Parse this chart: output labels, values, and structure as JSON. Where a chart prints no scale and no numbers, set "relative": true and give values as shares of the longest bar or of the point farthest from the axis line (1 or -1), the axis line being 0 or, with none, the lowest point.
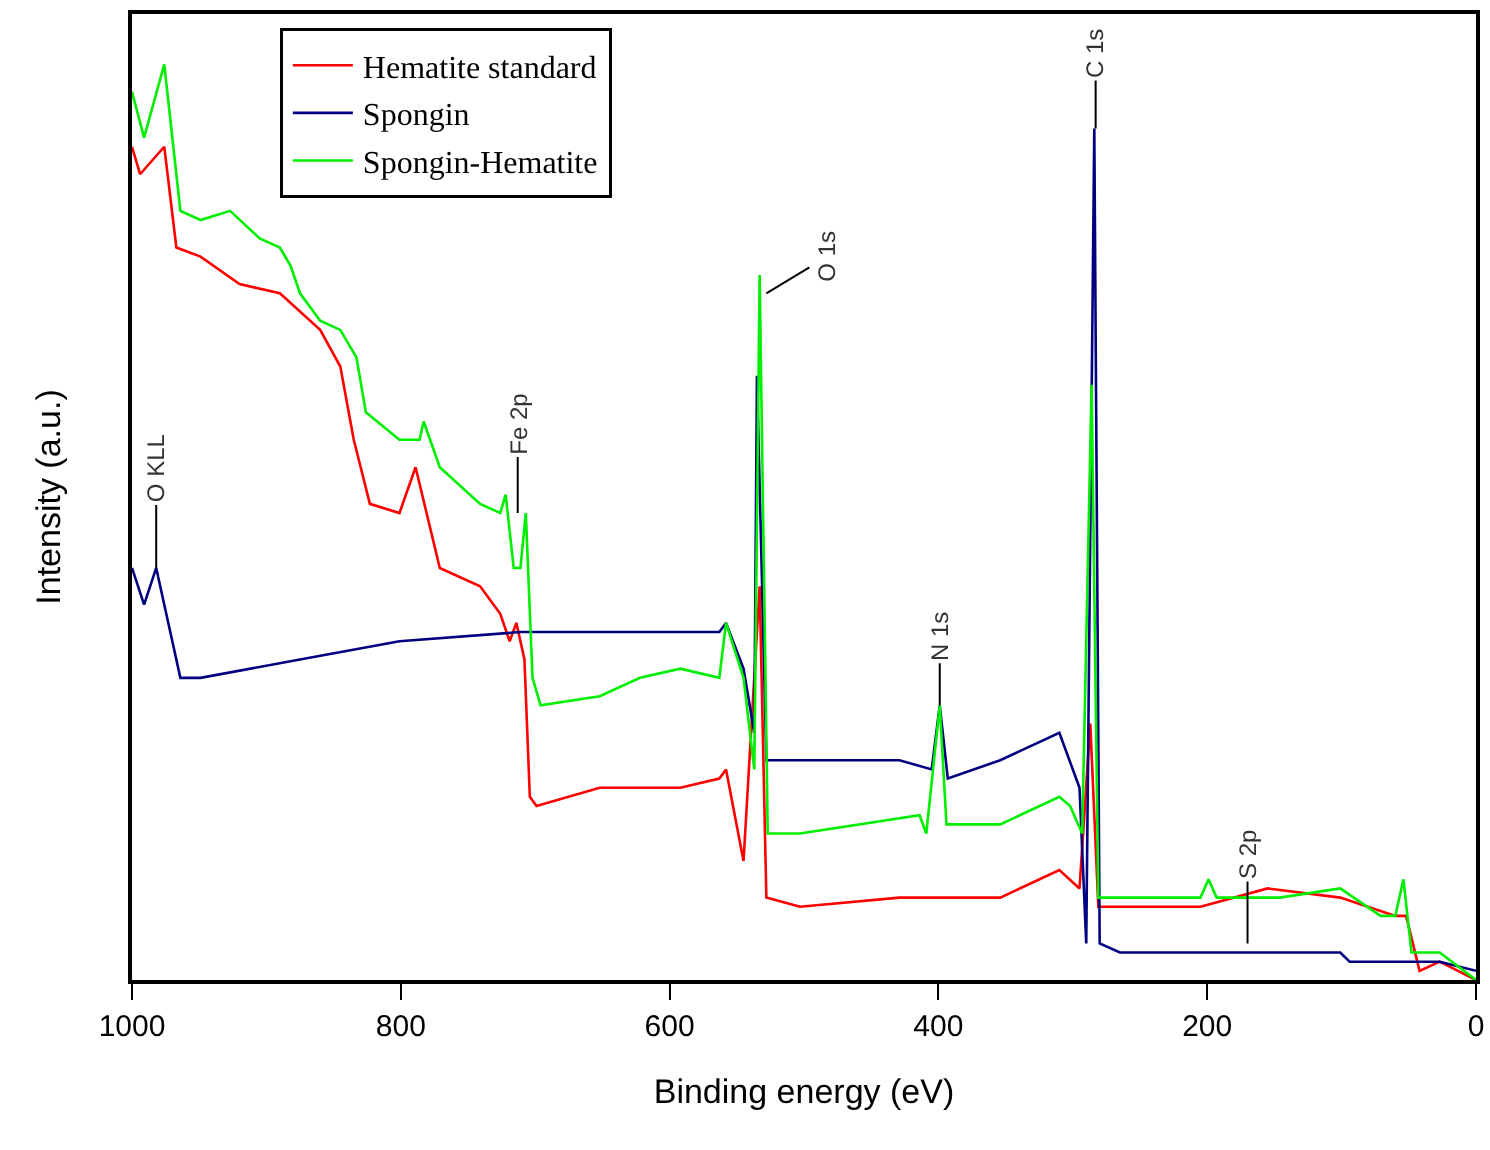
{
  "chart_data": {
    "type": "line",
    "relative": true,
    "xlabel": "Binding energy (eV)",
    "ylabel": "Intensity (a.u.)",
    "xlim": [
      1000,
      0
    ],
    "xticks": [
      1000,
      800,
      600,
      400,
      200,
      0
    ],
    "legend": "top left",
    "grid": false,
    "marker": "none",
    "line_style": "solid",
    "series": [
      {
        "name": "Hematite standard",
        "color": "#ff0000",
        "x": [
          1000,
          994,
          976,
          967,
          949,
          920,
          890,
          860,
          845,
          835,
          823,
          801,
          789,
          771,
          741,
          726,
          719,
          714,
          708,
          704,
          699,
          652,
          592,
          563,
          558,
          545,
          533,
          528,
          503,
          429,
          354,
          310,
          295,
          287,
          281,
          265,
          205,
          155,
          101,
          60,
          52,
          42,
          27,
          0
        ],
        "values": [
          0.91,
          0.88,
          0.91,
          0.8,
          0.79,
          0.76,
          0.75,
          0.71,
          0.67,
          0.59,
          0.52,
          0.51,
          0.56,
          0.45,
          0.43,
          0.4,
          0.37,
          0.39,
          0.35,
          0.2,
          0.19,
          0.21,
          0.21,
          0.22,
          0.23,
          0.13,
          0.43,
          0.09,
          0.08,
          0.09,
          0.09,
          0.12,
          0.1,
          0.28,
          0.08,
          0.08,
          0.08,
          0.1,
          0.09,
          0.07,
          0.07,
          0.01,
          0.02,
          0
        ]
      },
      {
        "name": "Spongin",
        "color": "#000080",
        "x": [
          1000,
          991,
          982,
          964,
          949,
          875,
          801,
          711,
          652,
          563,
          558,
          545,
          537,
          535,
          528,
          503,
          429,
          405,
          399,
          393,
          354,
          310,
          295,
          290,
          284,
          280,
          265,
          205,
          152,
          146,
          101,
          94,
          27,
          0
        ],
        "values": [
          0.45,
          0.41,
          0.45,
          0.33,
          0.33,
          0.35,
          0.37,
          0.38,
          0.38,
          0.38,
          0.39,
          0.34,
          0.27,
          0.66,
          0.24,
          0.24,
          0.24,
          0.23,
          0.3,
          0.22,
          0.24,
          0.27,
          0.21,
          0.04,
          0.93,
          0.04,
          0.03,
          0.03,
          0.03,
          0.03,
          0.03,
          0.02,
          0.02,
          0.01
        ]
      },
      {
        "name": "Spongin-Hematite",
        "color": "#00ee00",
        "x": [
          1000,
          991,
          976,
          964,
          949,
          927,
          905,
          890,
          882,
          875,
          860,
          845,
          833,
          826,
          801,
          786,
          783,
          771,
          741,
          726,
          722,
          716,
          711,
          707,
          702,
          696,
          652,
          622,
          592,
          563,
          558,
          545,
          537,
          533,
          527,
          503,
          414,
          409,
          399,
          394,
          354,
          310,
          302,
          293,
          286,
          281,
          265,
          205,
          199,
          193,
          146,
          101,
          71,
          60,
          54,
          48,
          27,
          0
        ],
        "values": [
          0.97,
          0.92,
          1.0,
          0.84,
          0.83,
          0.84,
          0.81,
          0.8,
          0.78,
          0.75,
          0.72,
          0.71,
          0.68,
          0.62,
          0.59,
          0.59,
          0.61,
          0.56,
          0.52,
          0.51,
          0.53,
          0.45,
          0.45,
          0.51,
          0.33,
          0.3,
          0.31,
          0.33,
          0.34,
          0.33,
          0.39,
          0.33,
          0.23,
          0.77,
          0.16,
          0.16,
          0.18,
          0.16,
          0.3,
          0.17,
          0.17,
          0.2,
          0.19,
          0.16,
          0.65,
          0.09,
          0.09,
          0.09,
          0.11,
          0.09,
          0.09,
          0.1,
          0.07,
          0.07,
          0.11,
          0.03,
          0.03,
          0
        ]
      }
    ],
    "annotations": [
      {
        "text": "O KLL",
        "x": 982,
        "y": 0.45
      },
      {
        "text": "Fe 2p",
        "x": 713,
        "y": 0.51
      },
      {
        "text": "O 1s",
        "x": 528,
        "y": 0.75
      },
      {
        "text": "N 1s",
        "x": 399,
        "y": 0.3
      },
      {
        "text": "C 1s",
        "x": 283,
        "y": 0.93
      },
      {
        "text": "S 2p",
        "x": 170,
        "y": 0.04
      }
    ]
  }
}
